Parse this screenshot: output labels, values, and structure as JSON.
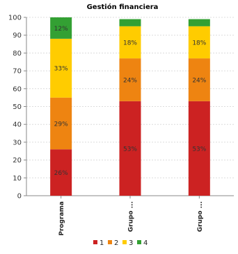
{
  "chart_data": {
    "type": "bar",
    "stacked": true,
    "title": "Gestión financiera",
    "xlabel": "",
    "ylabel": "",
    "ylim": [
      0,
      100
    ],
    "yticks": [
      0,
      10,
      20,
      30,
      40,
      50,
      60,
      70,
      80,
      90,
      100
    ],
    "grid": true,
    "legend_position": "bottom",
    "categories": [
      "Programa",
      "Grupo ...",
      "Grupo ..."
    ],
    "series": [
      {
        "name": "1",
        "color": "#cc2222",
        "values": [
          26,
          53,
          53
        ],
        "labels": [
          "26%",
          "53%",
          "53%"
        ]
      },
      {
        "name": "2",
        "color": "#ee8411",
        "values": [
          29,
          24,
          24
        ],
        "labels": [
          "29%",
          "24%",
          "24%"
        ]
      },
      {
        "name": "3",
        "color": "#ffcc00",
        "values": [
          33,
          18,
          18
        ],
        "labels": [
          "33%",
          "18%",
          "18%"
        ]
      },
      {
        "name": "4",
        "color": "#33a033",
        "values": [
          12,
          4,
          4
        ],
        "labels": [
          "12%",
          "",
          ""
        ]
      }
    ]
  }
}
